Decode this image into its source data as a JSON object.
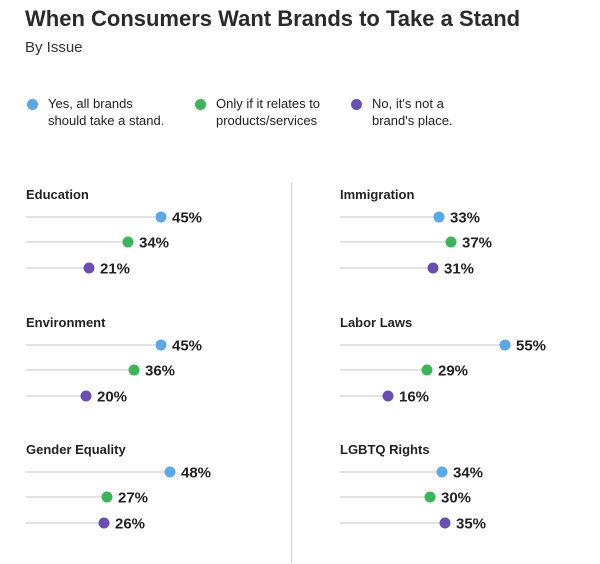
{
  "header": {
    "title": "When Consumers Want Brands to Take a Stand",
    "subtitle": "By Issue"
  },
  "colors": {
    "yes": "#5aa8e6",
    "only_if": "#3cb55a",
    "no": "#6a4fb3",
    "track": "#e2e2e2"
  },
  "legend": [
    {
      "key": "yes",
      "label": "Yes, all brands\nshould take a stand.",
      "color": "#5aa8e6"
    },
    {
      "key": "only_if",
      "label": "Only if it relates to\nproducts/services",
      "color": "#3cb55a"
    },
    {
      "key": "no",
      "label": "No, it's not a\nbrand's place.",
      "color": "#6a4fb3"
    }
  ],
  "chart_data": {
    "type": "dot",
    "title": "When Consumers Want Brands to Take a Stand",
    "subtitle": "By Issue",
    "series_names": [
      "Yes, all brands should take a stand.",
      "Only if it relates to products/services",
      "No, it's not a brand's place."
    ],
    "value_range": [
      0,
      60
    ],
    "unit": "%",
    "panels": [
      {
        "issue": "Education",
        "values": [
          45,
          34,
          21
        ]
      },
      {
        "issue": "Immigration",
        "values": [
          33,
          37,
          31
        ]
      },
      {
        "issue": "Environment",
        "values": [
          45,
          36,
          20
        ]
      },
      {
        "issue": "Labor Laws",
        "values": [
          55,
          29,
          16
        ]
      },
      {
        "issue": "Gender Equality",
        "values": [
          48,
          27,
          26
        ]
      },
      {
        "issue": "LGBTQ Rights",
        "values": [
          34,
          30,
          35
        ]
      }
    ]
  }
}
